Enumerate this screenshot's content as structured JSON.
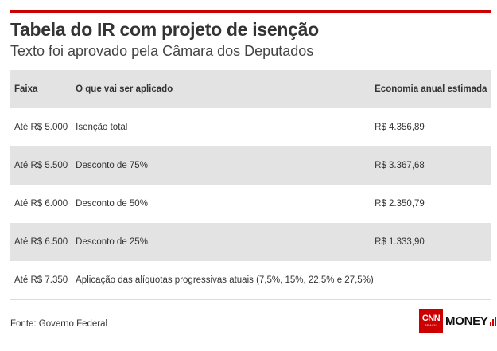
{
  "header": {
    "title": "Tabela do IR com projeto de isenção",
    "subtitle": "Texto foi aprovado pela Câmara dos Deputados"
  },
  "table": {
    "columns": [
      "Faixa",
      "O que vai ser aplicado",
      "Economia anual estimada"
    ],
    "rows": [
      [
        "Até R$ 5.000",
        "Isenção total",
        "R$ 4.356,89"
      ],
      [
        "Até R$ 5.500",
        "Desconto de 75%",
        "R$ 3.367,68"
      ],
      [
        "Até R$ 6.000",
        "Desconto de 50%",
        "R$ 2.350,79"
      ],
      [
        "Até R$ 6.500",
        "Desconto de 25%",
        "R$ 1.333,90"
      ],
      [
        "Até R$ 7.350",
        "Aplicação das alíquotas progressivas atuais (7,5%, 15%, 22,5% e 27,5%)",
        ""
      ]
    ]
  },
  "footer": {
    "source": "Fonte: Governo Federal",
    "logo": {
      "cnn": "CNN",
      "brasil": "BRASIL",
      "money": "MONEY",
      "accent_color": "#cc0000"
    }
  },
  "colors": {
    "accent": "#cc0000",
    "stripe": "#e3e3e3"
  }
}
